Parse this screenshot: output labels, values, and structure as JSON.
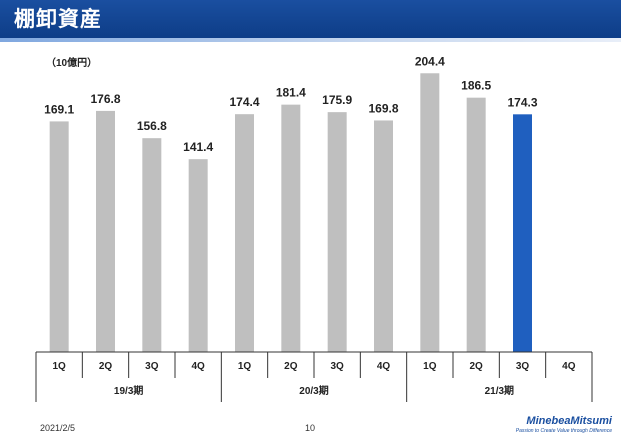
{
  "header": {
    "title": "棚卸資産"
  },
  "unit_label": "（10億円）",
  "footer": {
    "date": "2021/2/5",
    "page_number": "10",
    "brand_name": "MinebeaMitsumi",
    "brand_tagline": "Passion to Create Value through Difference"
  },
  "colors": {
    "header": "#0d3c86",
    "bar": "#bfbfbf",
    "highlight_bar": "#1f5fbf"
  },
  "chart_data": {
    "type": "bar",
    "categories": [
      "1Q",
      "2Q",
      "3Q",
      "4Q",
      "1Q",
      "2Q",
      "3Q",
      "4Q",
      "1Q",
      "2Q",
      "3Q",
      "4Q"
    ],
    "groups": [
      {
        "label": "19/3期",
        "categories": [
          "1Q",
          "2Q",
          "3Q",
          "4Q"
        ]
      },
      {
        "label": "20/3期",
        "categories": [
          "1Q",
          "2Q",
          "3Q",
          "4Q"
        ]
      },
      {
        "label": "21/3期",
        "categories": [
          "1Q",
          "2Q",
          "3Q",
          "4Q"
        ]
      }
    ],
    "values": [
      169.1,
      176.8,
      156.8,
      141.4,
      174.4,
      181.4,
      175.9,
      169.8,
      204.4,
      186.5,
      174.3,
      null
    ],
    "data_labels": [
      "169.1",
      "176.8",
      "156.8",
      "141.4",
      "174.4",
      "181.4",
      "175.9",
      "169.8",
      "204.4",
      "186.5",
      "174.3",
      ""
    ],
    "highlight_index": 10,
    "ylim": [
      0,
      220
    ],
    "title": "棚卸資産",
    "xlabel": "",
    "ylabel": ""
  }
}
